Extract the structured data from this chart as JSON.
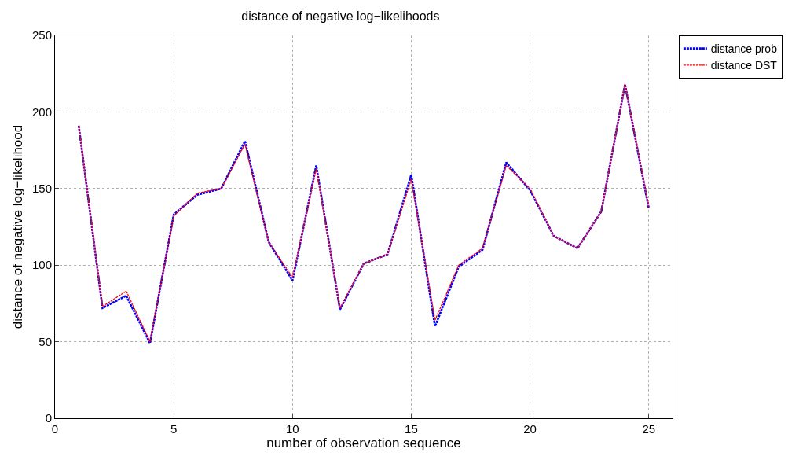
{
  "chart_data": {
    "type": "line",
    "title": "distance of negative log−likelihoods",
    "xlabel": "number of observation sequence",
    "ylabel": "distance of negative log−likelihood",
    "x": [
      1,
      2,
      3,
      4,
      5,
      6,
      7,
      8,
      9,
      10,
      11,
      12,
      13,
      14,
      15,
      16,
      17,
      18,
      19,
      20,
      21,
      22,
      23,
      24,
      25
    ],
    "series": [
      {
        "name": "distance prob",
        "color": "#0000ff",
        "values": [
          191,
          72,
          80,
          49,
          133,
          146,
          150,
          181,
          115,
          90,
          165,
          71,
          101,
          107,
          159,
          60,
          99,
          110,
          167,
          149,
          119,
          111,
          135,
          218,
          137
        ]
      },
      {
        "name": "distance DST",
        "color": "#ff0000",
        "values": [
          191,
          73,
          83,
          50,
          132,
          147,
          150,
          179,
          115,
          92,
          163,
          72,
          101,
          107,
          156,
          64,
          100,
          111,
          165,
          150,
          119,
          111,
          135,
          218,
          138
        ]
      }
    ],
    "xlim": [
      0,
      26
    ],
    "xticks": [
      0,
      5,
      10,
      15,
      20,
      25
    ],
    "ylim": [
      0,
      250
    ],
    "yticks": [
      0,
      50,
      100,
      150,
      200,
      250
    ],
    "grid": true,
    "legend": "top right",
    "line_style": "dashed",
    "marker": "none"
  }
}
